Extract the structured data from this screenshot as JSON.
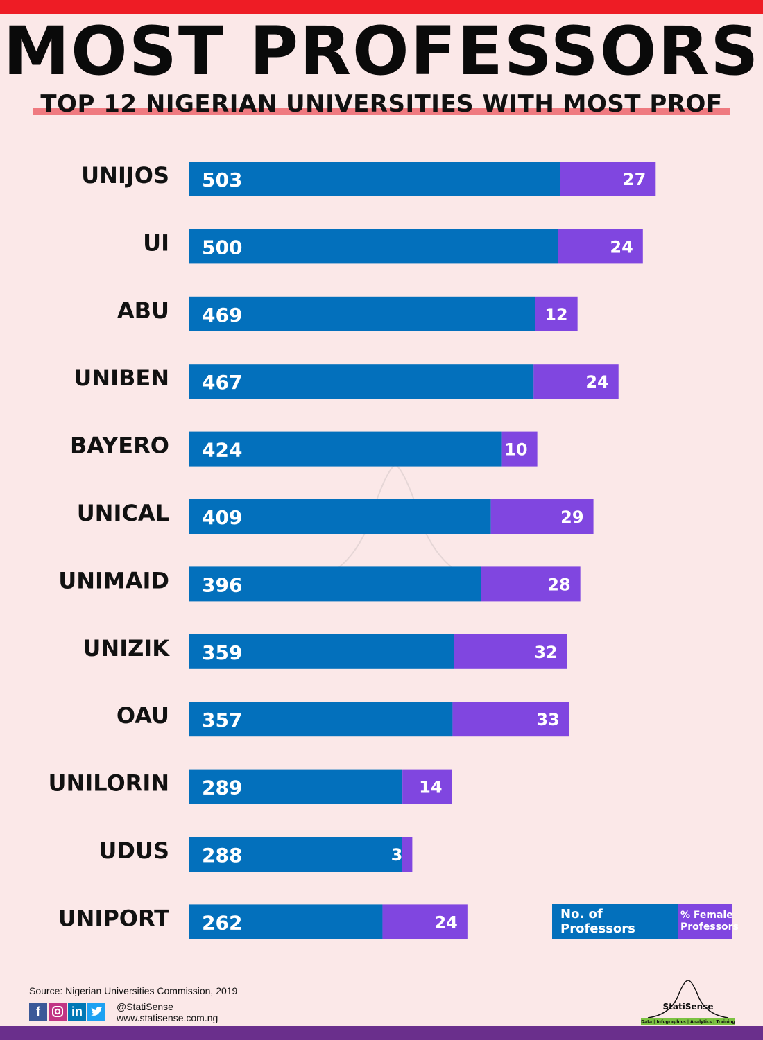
{
  "header": {
    "title": "MOST PROFESSORS",
    "subtitle": "TOP 12 NIGERIAN UNIVERSITIES WITH MOST PROF"
  },
  "colors": {
    "professors": "#0370bc",
    "female_pct": "#8046e0",
    "top_bar": "#ee1c25",
    "bottom_bar": "#6a2f8c",
    "background": "#fbe8e8"
  },
  "chart_data": {
    "type": "bar",
    "orientation": "horizontal",
    "stacked": true,
    "title": "MOST PROFESSORS",
    "subtitle": "TOP 12 NIGERIAN UNIVERSITIES WITH MOST PROF",
    "categories": [
      "UNIJOS",
      "UI",
      "ABU",
      "UNIBEN",
      "BAYERO",
      "UNICAL",
      "UNIMAID",
      "UNIZIK",
      "OAU",
      "UNILORIN",
      "UDUS",
      "UNIPORT"
    ],
    "series": [
      {
        "name": "No. of Professors",
        "values": [
          503,
          500,
          469,
          467,
          424,
          409,
          396,
          359,
          357,
          289,
          288,
          262
        ]
      },
      {
        "name": "% Female Professors",
        "values": [
          27,
          24,
          12,
          24,
          10,
          29,
          28,
          32,
          33,
          14,
          3,
          24
        ]
      }
    ],
    "legend": [
      "No. of Professors",
      "% Female Professors"
    ],
    "legend_position": "bottom-right",
    "grid": false
  },
  "legend": {
    "professors_label": "No. of Professors",
    "female_label": "% Female Professors"
  },
  "footer": {
    "source": "Source: Nigerian Universities Commission, 2019",
    "handle": "@StatiSense",
    "website": "www.statisense.com.ng",
    "brand": "StatiSense",
    "brand_tagline": "Data | Infographics | Analytics | Training",
    "socials": [
      "f",
      "in"
    ]
  }
}
